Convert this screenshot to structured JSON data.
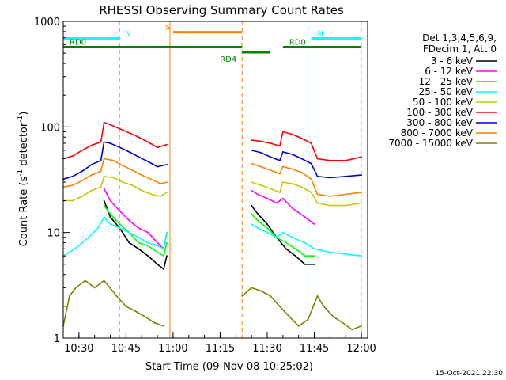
{
  "chart_data": {
    "type": "line",
    "title": "RHESSI Observing Summary Count Rates",
    "xlabel": "Start Time (09-Nov-08 10:25:02)",
    "ylabel_main": "Count Rate (s",
    "ylabel_sup1": "-1",
    "ylabel_mid": " detector",
    "ylabel_sup2": "-1",
    "ylabel_end": ")",
    "xlim": [
      "10:25",
      "12:02"
    ],
    "ylim": [
      1,
      1000
    ],
    "y_scale": "log",
    "x_ticks": [
      "10:30",
      "10:45",
      "11:00",
      "11:15",
      "11:30",
      "11:45",
      "12:00"
    ],
    "y_ticks": [
      "1",
      "10",
      "100",
      "1000"
    ],
    "timestamp": "15-Oct-2021 22:30",
    "legend": {
      "header1": "Det 1,3,4,5,6,9,",
      "header2": "FDecim 1, Att 0",
      "position": "right"
    },
    "flags": [
      {
        "label": "N",
        "start": "10:25",
        "end": "10:43",
        "level": 690,
        "color": "#00ffff"
      },
      {
        "label": "N",
        "start": "11:44",
        "end": "12:00",
        "level": 690,
        "color": "#00ffff"
      },
      {
        "label": "S",
        "start": "11:00",
        "end": "11:22",
        "level": 790,
        "color": "#ff8000"
      },
      {
        "label": "RD0",
        "start": "10:25",
        "end": "11:22",
        "level": 570,
        "color": "#008000"
      },
      {
        "label": "RD0",
        "start": "11:35",
        "end": "12:00",
        "level": 570,
        "color": "#008000"
      },
      {
        "label": "RD4",
        "start": "11:22",
        "end": "11:31",
        "level": 510,
        "color": "#008000"
      }
    ],
    "vlines": [
      {
        "time": "10:43",
        "color": "#00ffff",
        "dashed": true
      },
      {
        "time": "11:43",
        "color": "#00ffff",
        "dashed": false
      },
      {
        "time": "12:00",
        "color": "#00ffff",
        "dashed": true
      },
      {
        "time": "10:59",
        "color": "#ff8000",
        "dashed": false
      },
      {
        "time": "11:22",
        "color": "#ff8000",
        "dashed": true
      }
    ],
    "series": [
      {
        "name": "3 - 6 keV",
        "color": "#000000",
        "points": [
          [
            "10:38",
            20
          ],
          [
            "10:40",
            14
          ],
          [
            "10:43",
            11
          ],
          [
            "10:46",
            8
          ],
          [
            "10:49",
            7
          ],
          [
            "10:52",
            6
          ],
          [
            "10:55",
            5
          ],
          [
            "10:57",
            4.5
          ],
          [
            "10:58",
            6
          ],
          [
            "11:25",
            18
          ],
          [
            "11:27",
            15
          ],
          [
            "11:30",
            12
          ],
          [
            "11:33",
            9
          ],
          [
            "11:36",
            7
          ],
          [
            "11:39",
            6
          ],
          [
            "11:42",
            5
          ],
          [
            "11:45",
            5
          ]
        ]
      },
      {
        "name": "6 - 12 keV",
        "color": "#ff00ff",
        "points": [
          [
            "10:38",
            26
          ],
          [
            "10:40",
            20
          ],
          [
            "10:43",
            16
          ],
          [
            "10:46",
            13
          ],
          [
            "10:49",
            11
          ],
          [
            "10:52",
            10
          ],
          [
            "10:55",
            8
          ],
          [
            "10:57",
            7
          ],
          [
            "10:58",
            10
          ],
          [
            "11:25",
            25
          ],
          [
            "11:27",
            23
          ],
          [
            "11:30",
            21
          ],
          [
            "11:33",
            19
          ],
          [
            "11:35",
            21
          ],
          [
            "11:38",
            17
          ],
          [
            "11:42",
            14
          ],
          [
            "11:45",
            12
          ]
        ]
      },
      {
        "name": "12 - 25 keV",
        "color": "#00ff00",
        "points": [
          [
            "10:38",
            18
          ],
          [
            "10:40",
            15
          ],
          [
            "10:43",
            12
          ],
          [
            "10:46",
            10
          ],
          [
            "10:49",
            8
          ],
          [
            "10:52",
            7.5
          ],
          [
            "10:55",
            6.5
          ],
          [
            "10:57",
            6
          ],
          [
            "10:58",
            8
          ],
          [
            "11:25",
            15
          ],
          [
            "11:27",
            13
          ],
          [
            "11:30",
            11
          ],
          [
            "11:33",
            9
          ],
          [
            "11:36",
            8
          ],
          [
            "11:39",
            7
          ],
          [
            "11:42",
            6
          ],
          [
            "11:45",
            6
          ]
        ]
      },
      {
        "name": "25 - 50 keV",
        "color": "#00ffff",
        "points": [
          [
            "10:25",
            6
          ],
          [
            "10:27",
            6.5
          ],
          [
            "10:30",
            7.5
          ],
          [
            "10:33",
            9
          ],
          [
            "10:36",
            11
          ],
          [
            "10:38",
            14
          ],
          [
            "10:40",
            12
          ],
          [
            "10:43",
            11
          ],
          [
            "10:46",
            10
          ],
          [
            "10:49",
            9
          ],
          [
            "10:52",
            8
          ],
          [
            "10:55",
            7.5
          ],
          [
            "10:57",
            7
          ],
          [
            "10:58",
            10
          ],
          [
            "11:25",
            12
          ],
          [
            "11:27",
            11
          ],
          [
            "11:30",
            10
          ],
          [
            "11:33",
            9
          ],
          [
            "11:35",
            10
          ],
          [
            "11:38",
            9
          ],
          [
            "11:42",
            8
          ],
          [
            "11:45",
            7
          ],
          [
            "11:50",
            6.5
          ],
          [
            "12:00",
            6
          ]
        ]
      },
      {
        "name": "50 - 100 keV",
        "color": "#c8c800",
        "points": [
          [
            "10:25",
            20
          ],
          [
            "10:28",
            20
          ],
          [
            "10:31",
            22
          ],
          [
            "10:34",
            25
          ],
          [
            "10:37",
            27
          ],
          [
            "10:38",
            34
          ],
          [
            "10:41",
            33
          ],
          [
            "10:44",
            30
          ],
          [
            "10:47",
            28
          ],
          [
            "10:50",
            25
          ],
          [
            "10:53",
            23
          ],
          [
            "10:56",
            22
          ],
          [
            "10:58",
            24
          ],
          [
            "11:25",
            30
          ],
          [
            "11:28",
            28
          ],
          [
            "11:31",
            26
          ],
          [
            "11:34",
            24
          ],
          [
            "11:35",
            30
          ],
          [
            "11:38",
            29
          ],
          [
            "11:41",
            27
          ],
          [
            "11:44",
            24
          ],
          [
            "11:46",
            19
          ],
          [
            "11:50",
            18
          ],
          [
            "11:55",
            18
          ],
          [
            "12:00",
            19
          ]
        ]
      },
      {
        "name": "100 - 300 keV",
        "color": "#ff0000",
        "points": [
          [
            "10:25",
            50
          ],
          [
            "10:28",
            53
          ],
          [
            "10:31",
            60
          ],
          [
            "10:34",
            67
          ],
          [
            "10:37",
            72
          ],
          [
            "10:38",
            110
          ],
          [
            "10:40",
            105
          ],
          [
            "10:43",
            96
          ],
          [
            "10:46",
            88
          ],
          [
            "10:49",
            80
          ],
          [
            "10:52",
            72
          ],
          [
            "10:55",
            64
          ],
          [
            "10:58",
            68
          ],
          [
            "11:25",
            75
          ],
          [
            "11:28",
            73
          ],
          [
            "11:31",
            70
          ],
          [
            "11:34",
            66
          ],
          [
            "11:35",
            90
          ],
          [
            "11:38",
            85
          ],
          [
            "11:41",
            78
          ],
          [
            "11:44",
            70
          ],
          [
            "11:46",
            50
          ],
          [
            "11:50",
            48
          ],
          [
            "11:55",
            48
          ],
          [
            "12:00",
            52
          ]
        ]
      },
      {
        "name": "300 - 800 keV",
        "color": "#0000cc",
        "points": [
          [
            "10:25",
            32
          ],
          [
            "10:28",
            34
          ],
          [
            "10:31",
            38
          ],
          [
            "10:34",
            44
          ],
          [
            "10:37",
            48
          ],
          [
            "10:38",
            72
          ],
          [
            "10:40",
            70
          ],
          [
            "10:43",
            64
          ],
          [
            "10:46",
            58
          ],
          [
            "10:49",
            52
          ],
          [
            "10:52",
            47
          ],
          [
            "10:55",
            42
          ],
          [
            "10:58",
            44
          ],
          [
            "11:25",
            60
          ],
          [
            "11:28",
            57
          ],
          [
            "11:31",
            52
          ],
          [
            "11:34",
            48
          ],
          [
            "11:35",
            58
          ],
          [
            "11:38",
            55
          ],
          [
            "11:41",
            50
          ],
          [
            "11:44",
            45
          ],
          [
            "11:46",
            34
          ],
          [
            "11:50",
            33
          ],
          [
            "11:55",
            34
          ],
          [
            "12:00",
            35
          ]
        ]
      },
      {
        "name": "800 - 7000 keV",
        "color": "#ff8000",
        "points": [
          [
            "10:25",
            27
          ],
          [
            "10:28",
            28
          ],
          [
            "10:31",
            31
          ],
          [
            "10:34",
            35
          ],
          [
            "10:37",
            38
          ],
          [
            "10:38",
            50
          ],
          [
            "10:41",
            48
          ],
          [
            "10:44",
            43
          ],
          [
            "10:47",
            39
          ],
          [
            "10:50",
            35
          ],
          [
            "10:53",
            32
          ],
          [
            "10:56",
            29
          ],
          [
            "10:58",
            30
          ],
          [
            "11:25",
            45
          ],
          [
            "11:28",
            42
          ],
          [
            "11:31",
            39
          ],
          [
            "11:34",
            36
          ],
          [
            "11:35",
            42
          ],
          [
            "11:38",
            40
          ],
          [
            "11:41",
            37
          ],
          [
            "11:44",
            32
          ],
          [
            "11:46",
            23
          ],
          [
            "11:50",
            22
          ],
          [
            "11:55",
            23
          ],
          [
            "12:00",
            24
          ]
        ]
      },
      {
        "name": "7000 - 15000 keV",
        "color": "#808000",
        "points": [
          [
            "10:25",
            1.3
          ],
          [
            "10:27",
            2.5
          ],
          [
            "10:29",
            3
          ],
          [
            "10:32",
            3.5
          ],
          [
            "10:35",
            3
          ],
          [
            "10:38",
            3.5
          ],
          [
            "10:42",
            2.5
          ],
          [
            "10:45",
            2
          ],
          [
            "10:48",
            1.8
          ],
          [
            "10:51",
            1.6
          ],
          [
            "10:54",
            1.4
          ],
          [
            "10:57",
            1.3
          ],
          [
            "11:22",
            2.5
          ],
          [
            "11:25",
            3
          ],
          [
            "11:28",
            2.8
          ],
          [
            "11:31",
            2.5
          ],
          [
            "11:34",
            2
          ],
          [
            "11:37",
            1.6
          ],
          [
            "11:40",
            1.3
          ],
          [
            "11:43",
            1.5
          ],
          [
            "11:46",
            2.5
          ],
          [
            "11:48",
            2
          ],
          [
            "11:51",
            1.6
          ],
          [
            "11:54",
            1.4
          ],
          [
            "11:57",
            1.2
          ],
          [
            "12:00",
            1.3
          ]
        ]
      }
    ]
  }
}
